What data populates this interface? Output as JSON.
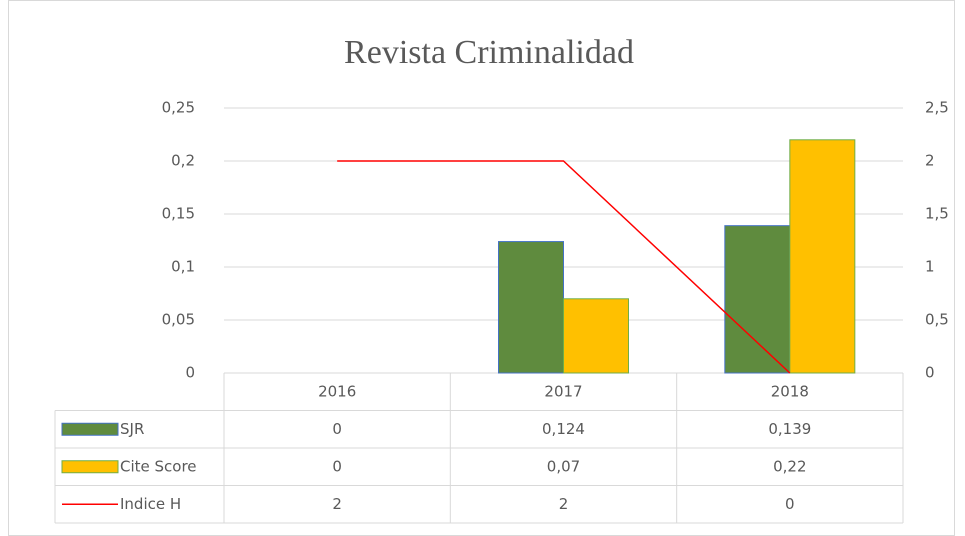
{
  "chart_data": {
    "type": "bar",
    "title": "Revista Criminalidad",
    "categories": [
      "2016",
      "2017",
      "2018"
    ],
    "series": [
      {
        "name": "SJR",
        "type": "bar",
        "color": "#5f8b3e",
        "values": [
          0,
          0.124,
          0.139
        ],
        "value_labels": [
          "0",
          "0,124",
          "0,139"
        ]
      },
      {
        "name": "Cite Score",
        "type": "bar",
        "color": "#ffc000",
        "values": [
          0,
          0.07,
          0.22
        ],
        "value_labels": [
          "0",
          "0,07",
          "0,22"
        ]
      },
      {
        "name": "Indice H",
        "type": "line",
        "axis": "y2",
        "color": "#ff0000",
        "values": [
          2,
          2,
          0
        ]
      }
    ],
    "ylim": [
      0,
      0.25
    ],
    "yticks": [
      0,
      {
        "value": 0.05,
        "label": "0,05"
      },
      {
        "value": 0.1,
        "label": "0,1"
      },
      {
        "value": 0.15,
        "label": "0,15"
      },
      {
        "value": 0.2,
        "label": "0,2"
      },
      {
        "value": 0.25,
        "label": "0,25"
      }
    ],
    "y2lim": [
      0,
      2.5
    ],
    "y2ticks": [
      0,
      {
        "value": 0.5,
        "label": "0,5"
      },
      1,
      {
        "value": 1.5,
        "label": "1,5"
      },
      2,
      {
        "value": 2.5,
        "label": "2,5"
      }
    ],
    "grid": true
  }
}
